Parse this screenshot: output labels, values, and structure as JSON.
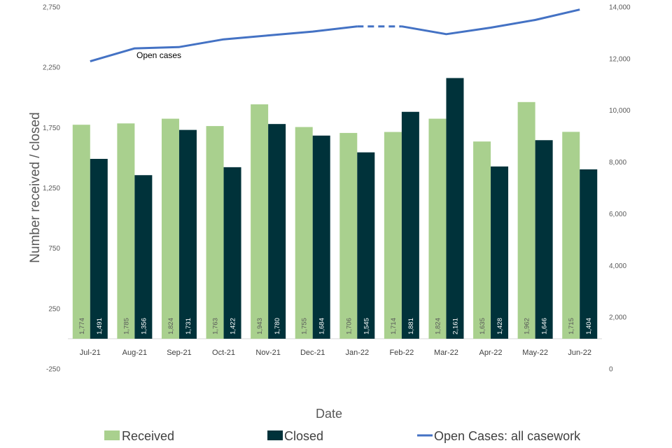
{
  "chart_data": {
    "type": "bar",
    "title": "",
    "categories": [
      "Jul-21",
      "Aug-21",
      "Sep-21",
      "Oct-21",
      "Nov-21",
      "Dec-21",
      "Jan-22",
      "Feb-22",
      "Mar-22",
      "Apr-22",
      "May-22",
      "Jun-22"
    ],
    "series": [
      {
        "name": "Received",
        "axis": "left",
        "color": "#a9d08e",
        "values": [
          1774,
          1785,
          1824,
          1763,
          1943,
          1755,
          1706,
          1714,
          1824,
          1635,
          1962,
          1715
        ],
        "labels": [
          "1,774",
          "1,785",
          "1,824",
          "1,763",
          "1,943",
          "1,755",
          "1,706",
          "1,714",
          "1,824",
          "1,635",
          "1,962",
          "1,715"
        ]
      },
      {
        "name": "Closed",
        "axis": "left",
        "color": "#00323a",
        "values": [
          1491,
          1356,
          1731,
          1422,
          1780,
          1684,
          1545,
          1881,
          2161,
          1428,
          1646,
          1404
        ],
        "labels": [
          "1,491",
          "1,356",
          "1,731",
          "1,422",
          "1,780",
          "1,684",
          "1,545",
          "1,881",
          "2,161",
          "1,428",
          "1,646",
          "1,404"
        ]
      },
      {
        "name": "Open Cases: all casework",
        "axis": "right",
        "type": "line",
        "color": "#4472c4",
        "values": [
          11900,
          12400,
          12450,
          12750,
          12900,
          13050,
          13250,
          13250,
          12950,
          13200,
          13500,
          13900
        ],
        "dashed_segment": [
          "Jan-22",
          "Feb-22"
        ]
      }
    ],
    "xlabel": "Date",
    "ylabel": "Number received / closed",
    "ylim": [
      -250,
      2750
    ],
    "yticks": [
      "2,750",
      "2,250",
      "1,750",
      "1,250",
      "750",
      "250",
      "-250"
    ],
    "y2lim": [
      0,
      14000
    ],
    "y2ticks": [
      "14,000",
      "12,000",
      "10,000",
      "8,000",
      "6,000",
      "4,000",
      "2,000",
      "0"
    ],
    "annotation": "Open cases",
    "legend": {
      "position": "bottom",
      "entries": [
        "Received",
        "Closed",
        "Open Cases: all casework"
      ]
    }
  }
}
